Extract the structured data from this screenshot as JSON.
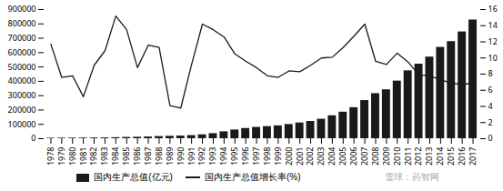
{
  "chart_data": {
    "type": "bar",
    "categories": [
      1978,
      1979,
      1980,
      1981,
      1982,
      1983,
      1984,
      1985,
      1986,
      1987,
      1988,
      1989,
      1990,
      1991,
      1992,
      1993,
      1994,
      1995,
      1996,
      1997,
      1998,
      1999,
      2000,
      2001,
      2002,
      2003,
      2004,
      2005,
      2006,
      2007,
      2008,
      2009,
      2010,
      2011,
      2012,
      2013,
      2014,
      2015,
      2016,
      2017
    ],
    "series": [
      {
        "name": "国内生产总值(亿元)",
        "type": "bar",
        "color": "#1a1a1a",
        "values": [
          3679,
          4063,
          4546,
          4892,
          5324,
          5963,
          7208,
          9016,
          10275,
          12059,
          15043,
          16993,
          18668,
          21782,
          26924,
          35334,
          48198,
          60794,
          71177,
          78973,
          84402,
          89677,
          99215,
          109655,
          120333,
          135823,
          159878,
          184937,
          216314,
          265810,
          314045,
          340903,
          401513,
          473104,
          519470,
          568845,
          636463,
          676708,
          744127,
          827122
        ]
      },
      {
        "name": "国内生产总值增长率(%)",
        "type": "line",
        "color": "#1a1a1a",
        "axis": "y2",
        "values": [
          11.7,
          7.6,
          7.8,
          5.2,
          9.1,
          10.9,
          15.2,
          13.5,
          8.8,
          11.6,
          11.3,
          4.1,
          3.8,
          9.2,
          14.2,
          13.5,
          12.6,
          10.5,
          9.6,
          8.8,
          7.8,
          7.6,
          8.4,
          8.3,
          9.1,
          10.0,
          10.1,
          11.3,
          12.7,
          14.2,
          9.6,
          9.2,
          10.6,
          9.5,
          7.9,
          7.8,
          7.3,
          6.9,
          6.7,
          6.9
        ]
      }
    ],
    "ylim": [
      0,
      900000
    ],
    "yticks": [
      0,
      100000,
      200000,
      300000,
      400000,
      500000,
      600000,
      700000,
      800000,
      900000
    ],
    "y2lim": [
      0,
      16
    ],
    "y2ticks": [
      0,
      2,
      4,
      6,
      8,
      10,
      12,
      14,
      16
    ],
    "grid": false,
    "legend": "bottom",
    "annotations": [
      "雪球：药智网"
    ]
  }
}
